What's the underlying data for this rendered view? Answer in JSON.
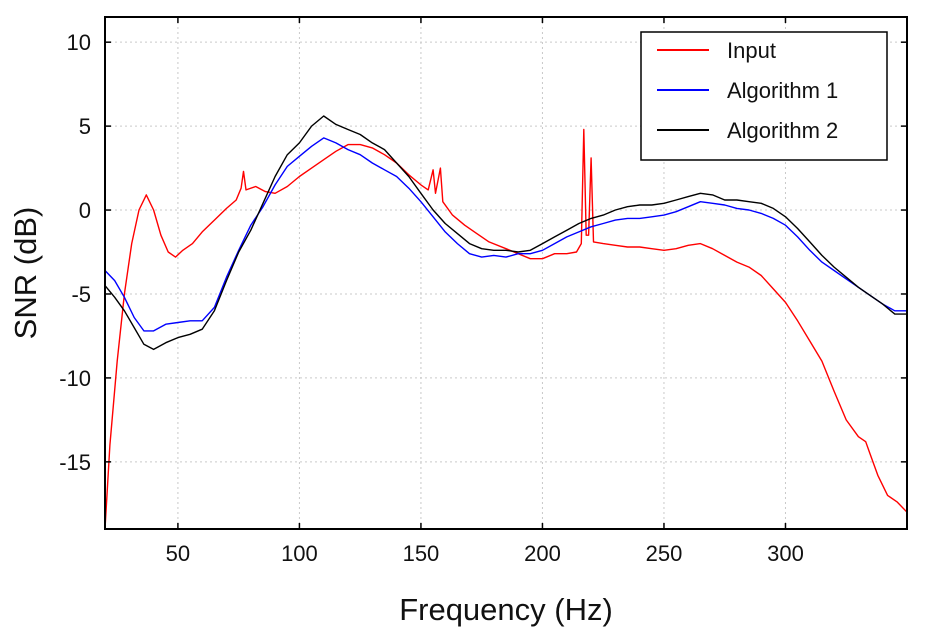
{
  "chart_data": {
    "type": "line",
    "title": "",
    "xlabel": "Frequency (Hz)",
    "ylabel": "SNR (dB)",
    "xlim": [
      20,
      350
    ],
    "ylim": [
      -19,
      11.5
    ],
    "xticks": [
      50,
      100,
      150,
      200,
      250,
      300
    ],
    "yticks": [
      10,
      5,
      0,
      -5,
      -10,
      -15
    ],
    "grid": true,
    "legend_position": "top-right",
    "series": [
      {
        "name": "Input",
        "color": "#ff0000",
        "points": [
          [
            20,
            -19
          ],
          [
            22,
            -14
          ],
          [
            25,
            -9
          ],
          [
            28,
            -5
          ],
          [
            31,
            -2
          ],
          [
            34,
            0
          ],
          [
            37,
            0.9
          ],
          [
            40,
            0
          ],
          [
            43,
            -1.5
          ],
          [
            46,
            -2.5
          ],
          [
            49,
            -2.8
          ],
          [
            52,
            -2.4
          ],
          [
            56,
            -2
          ],
          [
            60,
            -1.3
          ],
          [
            65,
            -0.6
          ],
          [
            70,
            0.1
          ],
          [
            74,
            0.6
          ],
          [
            76,
            1.3
          ],
          [
            77,
            2.3
          ],
          [
            78,
            1.2
          ],
          [
            82,
            1.4
          ],
          [
            86,
            1.1
          ],
          [
            90,
            1.0
          ],
          [
            95,
            1.4
          ],
          [
            100,
            2.0
          ],
          [
            105,
            2.5
          ],
          [
            110,
            3.0
          ],
          [
            115,
            3.5
          ],
          [
            120,
            3.9
          ],
          [
            125,
            3.9
          ],
          [
            130,
            3.7
          ],
          [
            135,
            3.3
          ],
          [
            140,
            2.8
          ],
          [
            145,
            2.1
          ],
          [
            150,
            1.5
          ],
          [
            153,
            1.2
          ],
          [
            155,
            2.4
          ],
          [
            156,
            1.0
          ],
          [
            158,
            2.5
          ],
          [
            159,
            0.5
          ],
          [
            163,
            -0.3
          ],
          [
            168,
            -0.9
          ],
          [
            173,
            -1.4
          ],
          [
            178,
            -1.9
          ],
          [
            185,
            -2.3
          ],
          [
            190,
            -2.6
          ],
          [
            195,
            -2.9
          ],
          [
            200,
            -2.9
          ],
          [
            205,
            -2.6
          ],
          [
            210,
            -2.6
          ],
          [
            214,
            -2.5
          ],
          [
            216,
            -2.0
          ],
          [
            217,
            4.8
          ],
          [
            218,
            -1.5
          ],
          [
            219,
            -1.5
          ],
          [
            220,
            3.1
          ],
          [
            221,
            -1.9
          ],
          [
            225,
            -2.0
          ],
          [
            230,
            -2.1
          ],
          [
            235,
            -2.2
          ],
          [
            240,
            -2.2
          ],
          [
            245,
            -2.3
          ],
          [
            250,
            -2.4
          ],
          [
            255,
            -2.3
          ],
          [
            260,
            -2.1
          ],
          [
            265,
            -2.0
          ],
          [
            270,
            -2.3
          ],
          [
            275,
            -2.7
          ],
          [
            280,
            -3.1
          ],
          [
            285,
            -3.4
          ],
          [
            290,
            -3.9
          ],
          [
            295,
            -4.7
          ],
          [
            300,
            -5.5
          ],
          [
            305,
            -6.6
          ],
          [
            310,
            -7.8
          ],
          [
            315,
            -9.0
          ],
          [
            320,
            -10.8
          ],
          [
            325,
            -12.5
          ],
          [
            330,
            -13.5
          ],
          [
            333,
            -13.8
          ],
          [
            335,
            -14.6
          ],
          [
            338,
            -15.8
          ],
          [
            342,
            -17.0
          ],
          [
            346,
            -17.4
          ],
          [
            350,
            -18.0
          ]
        ]
      },
      {
        "name": "Algorithm 1",
        "color": "#0000ff",
        "points": [
          [
            20,
            -3.6
          ],
          [
            24,
            -4.2
          ],
          [
            28,
            -5.2
          ],
          [
            32,
            -6.4
          ],
          [
            36,
            -7.2
          ],
          [
            40,
            -7.2
          ],
          [
            45,
            -6.8
          ],
          [
            50,
            -6.7
          ],
          [
            55,
            -6.6
          ],
          [
            60,
            -6.6
          ],
          [
            65,
            -5.8
          ],
          [
            70,
            -4.0
          ],
          [
            75,
            -2.4
          ],
          [
            80,
            -0.9
          ],
          [
            85,
            0.2
          ],
          [
            90,
            1.5
          ],
          [
            95,
            2.6
          ],
          [
            100,
            3.2
          ],
          [
            105,
            3.8
          ],
          [
            110,
            4.3
          ],
          [
            115,
            4.0
          ],
          [
            120,
            3.6
          ],
          [
            125,
            3.3
          ],
          [
            130,
            2.8
          ],
          [
            135,
            2.4
          ],
          [
            140,
            2.0
          ],
          [
            145,
            1.3
          ],
          [
            150,
            0.5
          ],
          [
            155,
            -0.4
          ],
          [
            160,
            -1.3
          ],
          [
            165,
            -2.0
          ],
          [
            170,
            -2.6
          ],
          [
            175,
            -2.8
          ],
          [
            180,
            -2.7
          ],
          [
            185,
            -2.8
          ],
          [
            190,
            -2.6
          ],
          [
            195,
            -2.6
          ],
          [
            200,
            -2.4
          ],
          [
            205,
            -2.0
          ],
          [
            210,
            -1.6
          ],
          [
            215,
            -1.3
          ],
          [
            220,
            -1.0
          ],
          [
            225,
            -0.8
          ],
          [
            230,
            -0.6
          ],
          [
            235,
            -0.5
          ],
          [
            240,
            -0.5
          ],
          [
            245,
            -0.4
          ],
          [
            250,
            -0.3
          ],
          [
            255,
            -0.1
          ],
          [
            260,
            0.2
          ],
          [
            265,
            0.5
          ],
          [
            270,
            0.4
          ],
          [
            275,
            0.3
          ],
          [
            280,
            0.1
          ],
          [
            285,
            0.0
          ],
          [
            290,
            -0.2
          ],
          [
            295,
            -0.5
          ],
          [
            300,
            -0.9
          ],
          [
            305,
            -1.6
          ],
          [
            310,
            -2.4
          ],
          [
            315,
            -3.1
          ],
          [
            320,
            -3.6
          ],
          [
            325,
            -4.1
          ],
          [
            330,
            -4.6
          ],
          [
            335,
            -5.1
          ],
          [
            340,
            -5.6
          ],
          [
            345,
            -6.0
          ],
          [
            350,
            -6.0
          ]
        ]
      },
      {
        "name": "Algorithm 2",
        "color": "#000000",
        "points": [
          [
            20,
            -4.5
          ],
          [
            24,
            -5.2
          ],
          [
            28,
            -6.0
          ],
          [
            32,
            -7.0
          ],
          [
            36,
            -8.0
          ],
          [
            40,
            -8.3
          ],
          [
            45,
            -7.9
          ],
          [
            50,
            -7.6
          ],
          [
            55,
            -7.4
          ],
          [
            60,
            -7.1
          ],
          [
            65,
            -6.0
          ],
          [
            70,
            -4.2
          ],
          [
            75,
            -2.5
          ],
          [
            80,
            -1.2
          ],
          [
            85,
            0.4
          ],
          [
            90,
            2.0
          ],
          [
            95,
            3.3
          ],
          [
            100,
            4.0
          ],
          [
            105,
            5.0
          ],
          [
            110,
            5.6
          ],
          [
            115,
            5.1
          ],
          [
            120,
            4.8
          ],
          [
            125,
            4.5
          ],
          [
            130,
            4.0
          ],
          [
            135,
            3.6
          ],
          [
            140,
            2.8
          ],
          [
            145,
            2.0
          ],
          [
            150,
            1.0
          ],
          [
            155,
            0.0
          ],
          [
            160,
            -0.8
          ],
          [
            165,
            -1.4
          ],
          [
            170,
            -2.0
          ],
          [
            175,
            -2.3
          ],
          [
            180,
            -2.4
          ],
          [
            185,
            -2.4
          ],
          [
            190,
            -2.5
          ],
          [
            195,
            -2.4
          ],
          [
            200,
            -2.0
          ],
          [
            205,
            -1.6
          ],
          [
            210,
            -1.2
          ],
          [
            215,
            -0.8
          ],
          [
            220,
            -0.5
          ],
          [
            225,
            -0.3
          ],
          [
            230,
            0.0
          ],
          [
            235,
            0.2
          ],
          [
            240,
            0.3
          ],
          [
            245,
            0.3
          ],
          [
            250,
            0.4
          ],
          [
            255,
            0.6
          ],
          [
            260,
            0.8
          ],
          [
            265,
            1.0
          ],
          [
            270,
            0.9
          ],
          [
            275,
            0.6
          ],
          [
            280,
            0.6
          ],
          [
            285,
            0.5
          ],
          [
            290,
            0.4
          ],
          [
            295,
            0.1
          ],
          [
            300,
            -0.4
          ],
          [
            305,
            -1.1
          ],
          [
            310,
            -1.9
          ],
          [
            315,
            -2.7
          ],
          [
            320,
            -3.4
          ],
          [
            325,
            -4.0
          ],
          [
            330,
            -4.6
          ],
          [
            335,
            -5.1
          ],
          [
            340,
            -5.6
          ],
          [
            345,
            -6.2
          ],
          [
            350,
            -6.2
          ]
        ]
      }
    ]
  }
}
